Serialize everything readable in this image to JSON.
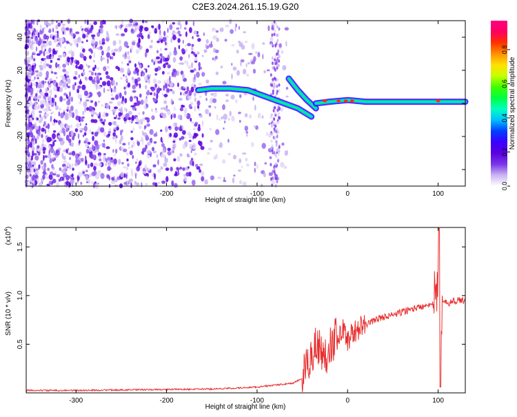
{
  "title": "C2E3.2024.261.15.19.G20",
  "colorbar": {
    "label": "Normalized spectral amplitude",
    "ticks": [
      "0.0",
      "0.2",
      "0.4",
      "0.6",
      "0.8"
    ],
    "range": [
      0,
      0.97
    ],
    "colors": [
      "#ffffff",
      "#c9b3f2",
      "#7a35e8",
      "#5a00e0",
      "#3a00ff",
      "#0040ff",
      "#00c0ff",
      "#00ffbf",
      "#00ff40",
      "#40ff00",
      "#c8ff00",
      "#ffe000",
      "#ff9000",
      "#ff3000",
      "#ff0060",
      "#ff0080"
    ]
  },
  "chart_data": [
    {
      "type": "heatmap",
      "xlabel": "Height of straight line (km)",
      "ylabel": "Frequency (Hz)",
      "xlim": [
        -355,
        130
      ],
      "ylim": [
        -50,
        50
      ],
      "xticks": [
        -300,
        -200,
        -100,
        0,
        100
      ],
      "xtick_labels": [
        "-300",
        "-200",
        "-100",
        "0",
        "100"
      ],
      "yticks": [
        -40,
        -20,
        0,
        20,
        40
      ],
      "ytick_labels": [
        "-40",
        "-20",
        "0",
        "20",
        "40"
      ],
      "features": [
        {
          "name": "signal-track-left",
          "x": [
            -165,
            -150,
            -130,
            -110,
            -90,
            -70,
            -55,
            -40
          ],
          "y": [
            8,
            9,
            9,
            8,
            4,
            0,
            -3,
            -8
          ],
          "amplitude": 0.45
        },
        {
          "name": "signal-track-branch",
          "x": [
            -65,
            -55,
            -45,
            -35
          ],
          "y": [
            15,
            8,
            2,
            -3
          ],
          "amplitude": 0.45
        },
        {
          "name": "signal-track-right",
          "x": [
            -35,
            -20,
            0,
            20,
            60,
            100,
            130
          ],
          "y": [
            0,
            1,
            2,
            1,
            1,
            1,
            1
          ],
          "amplitude": 0.75
        }
      ]
    },
    {
      "type": "line",
      "xlabel": "Height of straight line (km)",
      "ylabel": "SNR (10 * v/v)",
      "yscale_label": "(x10",
      "yscale_exp": "4",
      "xlim": [
        -355,
        130
      ],
      "ylim": [
        0,
        17000
      ],
      "xticks": [
        -300,
        -200,
        -100,
        0,
        100
      ],
      "xtick_labels": [
        "-300",
        "-200",
        "-100",
        "0",
        "100"
      ],
      "yticks": [
        5000,
        10000,
        15000
      ],
      "ytick_labels": [
        "0.5",
        "1.0",
        "1.5"
      ],
      "color": "#e83030",
      "series": [
        {
          "x": [
            -355,
            -300,
            -250,
            -200,
            -150,
            -120,
            -100,
            -80,
            -60,
            -50,
            -45,
            -40,
            -35,
            -30,
            -25,
            -20,
            -15,
            -10,
            -5,
            0,
            10,
            20,
            30,
            40,
            50,
            60,
            70,
            80,
            90,
            95,
            98,
            100,
            102,
            105,
            110,
            120,
            130
          ],
          "y": [
            250,
            250,
            300,
            350,
            400,
            500,
            600,
            800,
            1000,
            1500,
            2500,
            4000,
            5000,
            4500,
            3500,
            5000,
            5500,
            6000,
            6500,
            5500,
            6500,
            7000,
            7500,
            7800,
            8000,
            8300,
            8600,
            8800,
            9200,
            9000,
            9500,
            10000,
            7000,
            9300,
            9200,
            9500,
            9500
          ]
        }
      ]
    }
  ]
}
